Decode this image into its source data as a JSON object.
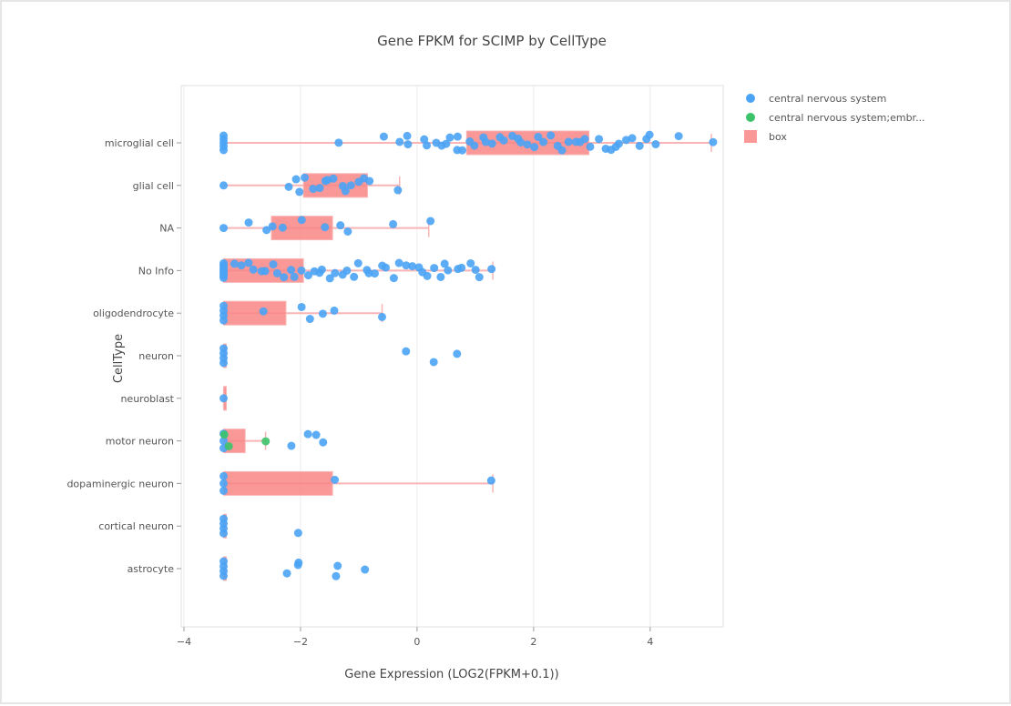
{
  "chart_data": {
    "type": "box",
    "title": "Gene FPKM for SCIMP by CellType",
    "xlabel": "Gene Expression (LOG2(FPKM+0.1))",
    "ylabel": "CellType",
    "xlim": [
      -4,
      5.3
    ],
    "xticks": [
      -4,
      -2,
      0,
      2,
      4
    ],
    "xtick_labels": [
      "−4",
      "−2",
      "0",
      "2",
      "4"
    ],
    "grid": true,
    "legend_position": "top-right",
    "colors": {
      "cns": "#4aa3f5",
      "cns_embryo": "#3cc36a",
      "box_fill": "#f98686",
      "box_line": "#f9b5b5",
      "grid": "#ececec",
      "plot_border": "#e2e2e2"
    },
    "legend": [
      {
        "label": "central nervous system",
        "color": "#4aa3f5",
        "kind": "marker"
      },
      {
        "label": "central nervous system;embr...",
        "color": "#3cc36a",
        "kind": "marker"
      },
      {
        "label": "box",
        "color": "#f98686",
        "kind": "box"
      }
    ],
    "categories": [
      "microglial cell",
      "glial cell",
      "NA",
      "No Info",
      "oligodendrocyte",
      "neuron",
      "neuroblast",
      "motor neuron",
      "dopaminergic neuron",
      "cortical neuron",
      "astrocyte"
    ],
    "boxes": [
      {
        "category": "microglial cell",
        "min": -3.32,
        "q1": 0.85,
        "q3": 2.95,
        "max": 5.05
      },
      {
        "category": "glial cell",
        "min": -3.32,
        "q1": -1.95,
        "q3": -0.85,
        "max": -0.3
      },
      {
        "category": "NA",
        "min": -3.32,
        "q1": -2.5,
        "q3": -1.45,
        "max": 0.2
      },
      {
        "category": "No Info",
        "min": -3.32,
        "q1": -3.32,
        "q3": -1.95,
        "max": 1.3
      },
      {
        "category": "oligodendrocyte",
        "min": -3.32,
        "q1": -3.32,
        "q3": -2.25,
        "max": -0.6
      },
      {
        "category": "neuron",
        "min": -3.32,
        "q1": -3.32,
        "q3": -3.32,
        "max": -3.32
      },
      {
        "category": "neuroblast",
        "min": -3.32,
        "q1": -3.32,
        "q3": -3.32,
        "max": -3.32
      },
      {
        "category": "motor neuron",
        "min": -3.32,
        "q1": -3.32,
        "q3": -2.95,
        "max": -2.6
      },
      {
        "category": "dopaminergic neuron",
        "min": -3.32,
        "q1": -3.32,
        "q3": -1.45,
        "max": 1.3
      },
      {
        "category": "cortical neuron",
        "min": -3.32,
        "q1": -3.32,
        "q3": -3.32,
        "max": -3.32
      },
      {
        "category": "astrocyte",
        "min": -3.32,
        "q1": -3.32,
        "q3": -3.32,
        "max": -3.32
      }
    ],
    "series": [
      {
        "name": "central nervous system",
        "color": "#4aa3f5",
        "points": [
          {
            "c": "microglial cell",
            "x": -3.32,
            "n": 5
          },
          {
            "c": "microglial cell",
            "xs": [
              -1.35,
              -0.55,
              -0.3,
              -0.2,
              -0.15,
              0.1,
              0.2,
              0.35,
              0.45,
              0.5,
              0.6,
              0.65,
              0.7,
              0.8,
              0.9,
              1.0,
              1.1,
              1.2,
              1.3,
              1.4,
              1.5,
              1.6,
              1.7,
              1.8,
              1.9,
              2.0,
              2.1,
              2.2,
              2.3,
              2.4,
              2.5,
              2.6,
              2.7,
              2.8,
              2.9,
              3.0,
              3.1,
              3.2,
              3.3,
              3.4,
              3.5,
              3.6,
              3.7,
              3.8,
              3.9,
              4.0,
              4.1,
              4.45,
              5.05
            ]
          },
          {
            "c": "glial cell",
            "x": -3.32,
            "n": 1
          },
          {
            "c": "glial cell",
            "xs": [
              -2.2,
              -2.1,
              -2.0,
              -1.9,
              -1.8,
              -1.7,
              -1.6,
              -1.5,
              -1.4,
              -1.3,
              -1.2,
              -1.1,
              -1.0,
              -0.9,
              -0.8,
              -0.3
            ]
          },
          {
            "c": "NA",
            "x": -3.32,
            "n": 1
          },
          {
            "c": "NA",
            "xs": [
              -2.85,
              -2.55,
              -2.45,
              -2.3,
              -2.0,
              -1.6,
              -1.35,
              -1.2,
              -0.4,
              0.2
            ]
          },
          {
            "c": "No Info",
            "x": -3.32,
            "n": 8
          },
          {
            "c": "No Info",
            "xs": [
              -3.1,
              -3.0,
              -2.9,
              -2.8,
              -2.7,
              -2.6,
              -2.5,
              -2.4,
              -2.3,
              -2.2,
              -2.1,
              -2.0,
              -1.9,
              -1.8,
              -1.7,
              -1.6,
              -1.5,
              -1.4,
              -1.3,
              -1.2,
              -1.1,
              -1.0,
              -0.9,
              -0.8,
              -0.7,
              -0.6,
              -0.5,
              -0.4,
              -0.3,
              -0.2,
              -0.1,
              0.0,
              0.1,
              0.2,
              0.3,
              0.4,
              0.5,
              0.55,
              0.7,
              0.8,
              0.9,
              1.0,
              1.1,
              1.3
            ]
          },
          {
            "c": "oligodendrocyte",
            "x": -3.32,
            "n": 4
          },
          {
            "c": "oligodendrocyte",
            "xs": [
              -2.6,
              -2.0,
              -1.8,
              -1.6,
              -1.4,
              -0.6
            ]
          },
          {
            "c": "neuron",
            "x": -3.32,
            "n": 4
          },
          {
            "c": "neuron",
            "xs": [
              -0.2,
              0.25,
              0.65
            ]
          },
          {
            "c": "neuroblast",
            "x": -3.32,
            "n": 1
          },
          {
            "c": "motor neuron",
            "x": -3.32,
            "n": 3
          },
          {
            "c": "motor neuron",
            "xs": [
              -2.15,
              -1.85,
              -1.75,
              -1.65
            ]
          },
          {
            "c": "dopaminergic neuron",
            "x": -3.32,
            "n": 3
          },
          {
            "c": "dopaminergic neuron",
            "xs": [
              -1.4,
              1.3
            ]
          },
          {
            "c": "cortical neuron",
            "x": -3.32,
            "n": 4
          },
          {
            "c": "cortical neuron",
            "xs": [
              -2.05
            ]
          },
          {
            "c": "astrocyte",
            "x": -3.32,
            "n": 4
          },
          {
            "c": "astrocyte",
            "xs": [
              -2.25,
              -2.05,
              -2.05,
              -1.4,
              -1.35,
              -0.9
            ]
          }
        ]
      },
      {
        "name": "central nervous system;embr...",
        "color": "#3cc36a",
        "points": [
          {
            "c": "motor neuron",
            "xs": [
              -3.3,
              -3.25,
              -2.6
            ]
          }
        ]
      }
    ]
  }
}
